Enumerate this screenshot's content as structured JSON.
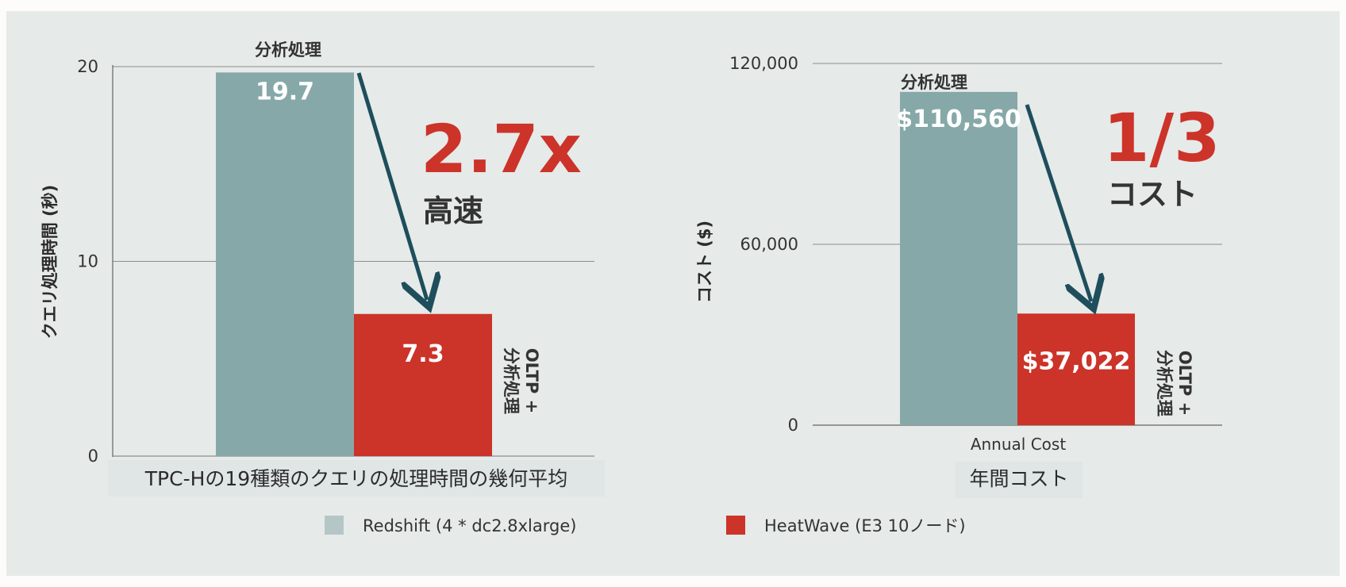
{
  "colors": {
    "redshift": "#86a8a8",
    "heatwave": "#cc3329",
    "arrow": "#1e4e5c",
    "highlight": "#cc3329"
  },
  "chart_data": [
    {
      "type": "bar",
      "ylabel": "クエリ処理時間 (秒)",
      "xlabel": "TPC-Hの19種類のクエリの処理時間の幾何平均",
      "ylim": [
        0,
        20
      ],
      "yticks": [
        "0",
        "10",
        "20"
      ],
      "ytick_values": [
        0,
        10,
        20
      ],
      "grid": true,
      "series": [
        {
          "name": "Redshift (4 * dc2.8xlarge)",
          "values": [
            19.7
          ],
          "label": "19.7",
          "annotation": "分析処理"
        },
        {
          "name": "HeatWave (E3 10ノード)",
          "values": [
            7.3
          ],
          "label": "7.3",
          "annotation": "OLTP + 分析処理"
        }
      ],
      "highlight": {
        "value": "2.7x",
        "text": "高速"
      }
    },
    {
      "type": "bar",
      "ylabel": "コスト ($)",
      "xlabel": "年間コスト",
      "categories": [
        "Annual Cost"
      ],
      "ylim": [
        0,
        120000
      ],
      "yticks": [
        "0",
        "60,000",
        "120,000"
      ],
      "ytick_values": [
        0,
        60000,
        120000
      ],
      "grid": true,
      "series": [
        {
          "name": "Redshift (4 * dc2.8xlarge)",
          "values": [
            110560
          ],
          "label": "$110,560",
          "annotation": "分析処理"
        },
        {
          "name": "HeatWave (E3 10ノード)",
          "values": [
            37022
          ],
          "label": "$37,022",
          "annotation": "OLTP + 分析処理"
        }
      ],
      "highlight": {
        "value": "1/3",
        "text": "コスト"
      }
    }
  ],
  "legend": {
    "position": "bottom",
    "items": [
      {
        "label": "Redshift (4 * dc2.8xlarge)",
        "color": "#b4c7c6"
      },
      {
        "label": "HeatWave (E3 10ノード)",
        "color": "#cc3329"
      }
    ]
  }
}
